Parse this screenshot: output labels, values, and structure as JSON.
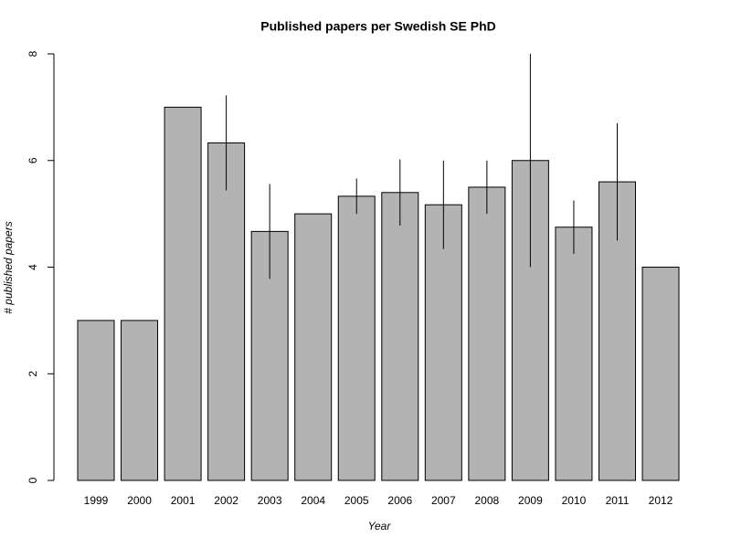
{
  "chart_data": {
    "type": "bar",
    "title": "Published papers per Swedish SE PhD",
    "x_label": "Year",
    "y_label": "# published papers",
    "categories": [
      "1999",
      "2000",
      "2001",
      "2002",
      "2003",
      "2004",
      "2005",
      "2006",
      "2007",
      "2008",
      "2009",
      "2010",
      "2011",
      "2012"
    ],
    "values": [
      3,
      3,
      7,
      6.33,
      4.67,
      5,
      5.33,
      5.4,
      5.17,
      5.5,
      6,
      4.75,
      5.6,
      4
    ],
    "errors": [
      null,
      null,
      null,
      0.89,
      0.89,
      null,
      0.33,
      0.62,
      0.83,
      0.5,
      2,
      0.5,
      1.1,
      null
    ],
    "color": "#b3b3b3",
    "ylim": [
      0,
      8
    ],
    "yticks": [
      0,
      2,
      4,
      6,
      8
    ],
    "grid": false
  }
}
